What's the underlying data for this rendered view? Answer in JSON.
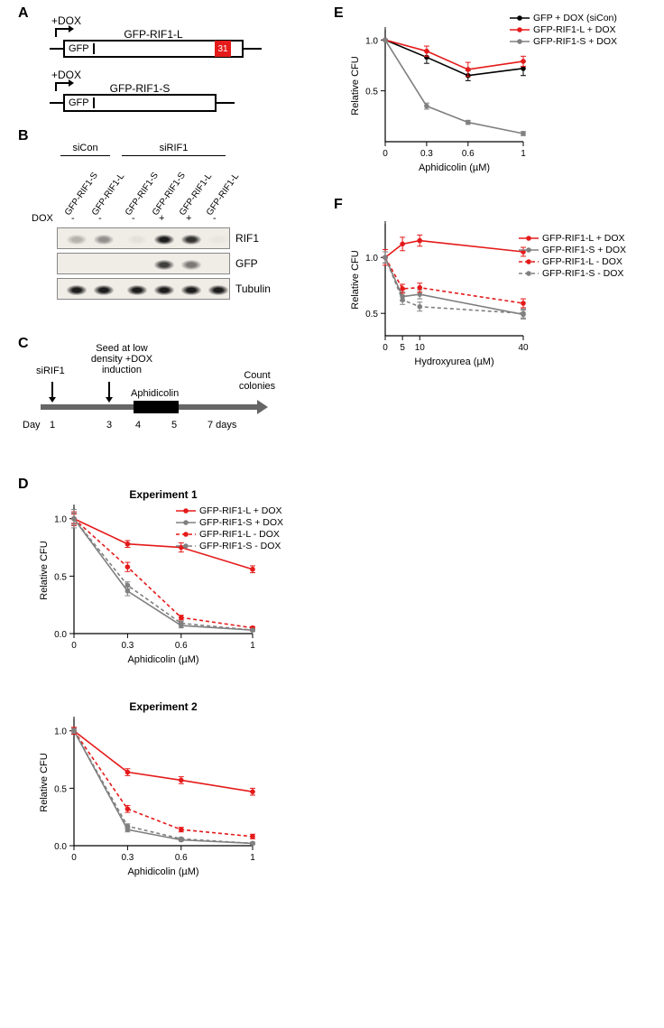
{
  "panels": {
    "A": "A",
    "B": "B",
    "C": "C",
    "D": "D",
    "E": "E",
    "F": "F"
  },
  "constructA": {
    "dox": "+DOX",
    "gfp": "GFP",
    "long_label": "GFP-RIF1-L",
    "exon31": "31",
    "short_label": "GFP-RIF1-S"
  },
  "western": {
    "group_siCon": "siCon",
    "group_siRIF1": "siRIF1",
    "lane_labels": [
      "GFP-RIF1-S",
      "GFP-RIF1-L",
      "GFP-RIF1-S",
      "GFP-RIF1-S",
      "GFP-RIF1-L",
      "GFP-RIF1-L"
    ],
    "dox_label": "DOX",
    "dox_vals": [
      "-",
      "-",
      "-",
      "+",
      "+",
      "-"
    ],
    "rows": [
      "RIF1",
      "GFP",
      "Tubulin"
    ]
  },
  "timeline": {
    "siRIF1": "siRIF1",
    "seed": "Seed at low\ndensity +DOX\ninduction",
    "aph": "Aphidicolin",
    "count": "Count\ncolonies",
    "day": "Day",
    "d1": "1",
    "d3": "3",
    "d4": "4",
    "d5": "5",
    "d7": "7 days"
  },
  "chartD1": {
    "type": "line",
    "title": "Experiment 1",
    "xlabel": "Aphidicolin (µM)",
    "ylabel": "Relative CFU",
    "xticks": [
      0,
      0.3,
      0.6,
      1
    ],
    "xlim": [
      0,
      1
    ],
    "yticks": [
      0.0,
      0.5,
      1.0
    ],
    "ylim": [
      0,
      1.1
    ],
    "series": [
      {
        "name": "GFP-RIF1-L + DOX",
        "color": "#e51a1a",
        "dash": "",
        "x": [
          0,
          0.3,
          0.6,
          1
        ],
        "y": [
          1.0,
          0.78,
          0.75,
          0.56
        ],
        "err": [
          0.06,
          0.03,
          0.04,
          0.03
        ]
      },
      {
        "name": "GFP-RIF1-S + DOX",
        "color": "#808080",
        "dash": "",
        "x": [
          0,
          0.3,
          0.6,
          1
        ],
        "y": [
          1.0,
          0.37,
          0.07,
          0.03
        ],
        "err": [
          0.08,
          0.04,
          0.02,
          0.01
        ]
      },
      {
        "name": "GFP-RIF1-L - DOX",
        "color": "#e51a1a",
        "dash": "4,3",
        "x": [
          0,
          0.3,
          0.6,
          1
        ],
        "y": [
          1.0,
          0.58,
          0.14,
          0.05
        ],
        "err": [
          0.04,
          0.04,
          0.02,
          0.01
        ]
      },
      {
        "name": "GFP-RIF1-S - DOX",
        "color": "#808080",
        "dash": "4,3",
        "x": [
          0,
          0.3,
          0.6,
          1
        ],
        "y": [
          1.0,
          0.42,
          0.09,
          0.03
        ],
        "err": [
          0.05,
          0.03,
          0.02,
          0.01
        ]
      }
    ]
  },
  "chartD2": {
    "type": "line",
    "title": "Experiment 2",
    "xlabel": "Aphidicolin (µM)",
    "ylabel": "Relative CFU",
    "xticks": [
      0,
      0.3,
      0.6,
      1
    ],
    "xlim": [
      0,
      1
    ],
    "yticks": [
      0.0,
      0.5,
      1.0
    ],
    "ylim": [
      0,
      1.1
    ],
    "series": [
      {
        "name": "GFP-RIF1-L + DOX",
        "color": "#e51a1a",
        "dash": "",
        "x": [
          0,
          0.3,
          0.6,
          1
        ],
        "y": [
          1.0,
          0.64,
          0.57,
          0.47
        ],
        "err": [
          0.03,
          0.03,
          0.03,
          0.03
        ]
      },
      {
        "name": "GFP-RIF1-S + DOX",
        "color": "#808080",
        "dash": "",
        "x": [
          0,
          0.3,
          0.6,
          1
        ],
        "y": [
          1.0,
          0.14,
          0.05,
          0.02
        ],
        "err": [
          0.02,
          0.02,
          0.01,
          0.01
        ]
      },
      {
        "name": "GFP-RIF1-L - DOX",
        "color": "#e51a1a",
        "dash": "4,3",
        "x": [
          0,
          0.3,
          0.6,
          1
        ],
        "y": [
          1.0,
          0.32,
          0.14,
          0.08
        ],
        "err": [
          0.03,
          0.03,
          0.02,
          0.02
        ]
      },
      {
        "name": "GFP-RIF1-S - DOX",
        "color": "#808080",
        "dash": "4,3",
        "x": [
          0,
          0.3,
          0.6,
          1
        ],
        "y": [
          1.0,
          0.17,
          0.06,
          0.02
        ],
        "err": [
          0.02,
          0.02,
          0.01,
          0.01
        ]
      }
    ]
  },
  "chartE": {
    "type": "line",
    "title": "",
    "xlabel": "Aphidicolin (µM)",
    "ylabel": "Relative CFU",
    "xticks": [
      0,
      0.3,
      0.6,
      1
    ],
    "xlim": [
      0,
      1
    ],
    "yticks": [
      0.5,
      1.0
    ],
    "ylim": [
      0,
      1.1
    ],
    "series": [
      {
        "name": "GFP + DOX (siCon)",
        "color": "#000000",
        "dash": "",
        "x": [
          0,
          0.3,
          0.6,
          1
        ],
        "y": [
          1.0,
          0.83,
          0.65,
          0.72
        ],
        "err": [
          0.0,
          0.06,
          0.05,
          0.07
        ]
      },
      {
        "name": "GFP-RIF1-L + DOX",
        "color": "#e51a1a",
        "dash": "",
        "x": [
          0,
          0.3,
          0.6,
          1
        ],
        "y": [
          1.0,
          0.89,
          0.71,
          0.79
        ],
        "err": [
          0.0,
          0.05,
          0.07,
          0.05
        ]
      },
      {
        "name": "GFP-RIF1-S + DOX",
        "color": "#808080",
        "dash": "",
        "x": [
          0,
          0.3,
          0.6,
          1
        ],
        "y": [
          1.0,
          0.35,
          0.19,
          0.08
        ],
        "err": [
          0.0,
          0.03,
          0.02,
          0.02
        ]
      }
    ]
  },
  "chartF": {
    "type": "line",
    "title": "",
    "xlabel": "Hydroxyurea (µM)",
    "ylabel": "Relative CFU",
    "xticks": [
      0,
      5,
      10,
      40
    ],
    "xlim": [
      0,
      40
    ],
    "yticks": [
      0.5,
      1.0
    ],
    "ylim": [
      0.3,
      1.3
    ],
    "series": [
      {
        "name": "GFP-RIF1-L + DOX",
        "color": "#e51a1a",
        "dash": "",
        "x": [
          0,
          5,
          10,
          40
        ],
        "y": [
          1.0,
          1.12,
          1.15,
          1.05
        ],
        "err": [
          0.07,
          0.06,
          0.05,
          0.04
        ]
      },
      {
        "name": "GFP-RIF1-S + DOX",
        "color": "#808080",
        "dash": "",
        "x": [
          0,
          5,
          10,
          40
        ],
        "y": [
          1.0,
          0.65,
          0.67,
          0.49
        ],
        "err": [
          0.05,
          0.04,
          0.04,
          0.04
        ]
      },
      {
        "name": "GFP-RIF1-L - DOX",
        "color": "#e51a1a",
        "dash": "4,3",
        "x": [
          0,
          5,
          10,
          40
        ],
        "y": [
          1.0,
          0.72,
          0.73,
          0.59
        ],
        "err": [
          0.05,
          0.04,
          0.04,
          0.04
        ]
      },
      {
        "name": "GFP-RIF1-S - DOX",
        "color": "#808080",
        "dash": "4,3",
        "x": [
          0,
          5,
          10,
          40
        ],
        "y": [
          1.0,
          0.62,
          0.56,
          0.5
        ],
        "err": [
          0.05,
          0.04,
          0.04,
          0.04
        ]
      }
    ]
  },
  "legend_words": {
    "gfp_dox_sicon": "GFP + DOX (siCon)",
    "l_plus": "GFP-RIF1-L + DOX",
    "s_plus": "GFP-RIF1-S + DOX",
    "l_minus": "GFP-RIF1-L - DOX",
    "s_minus": "GFP-RIF1-S - DOX"
  },
  "colors": {
    "red": "#e51a1a",
    "gray": "#808080",
    "black": "#000000",
    "bg": "#ffffff"
  }
}
